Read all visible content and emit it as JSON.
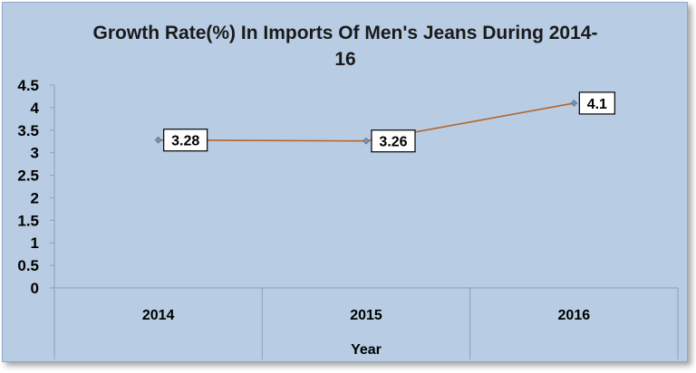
{
  "chart_data": {
    "type": "line",
    "title_lines": [
      "Growth Rate(%) In Imports Of Men's Jeans During 2014-",
      "16"
    ],
    "xlabel": "Year",
    "ylabel": "",
    "categories": [
      "2014",
      "2015",
      "2016"
    ],
    "series": [
      {
        "values": [
          3.28,
          3.26,
          4.1
        ],
        "labels": [
          "3.28",
          "3.26",
          "4.1"
        ]
      }
    ],
    "ylim": [
      0,
      4.5
    ],
    "yticks": [
      "0",
      "0.5",
      "1",
      "1.5",
      "2",
      "2.5",
      "3",
      "3.5",
      "4",
      "4.5"
    ],
    "grid": false,
    "legend": "none",
    "colors": {
      "background": "#b8cce4",
      "line": "#b5652a",
      "marker": "#7f8fa6",
      "axis": "#8ea0b8"
    }
  }
}
